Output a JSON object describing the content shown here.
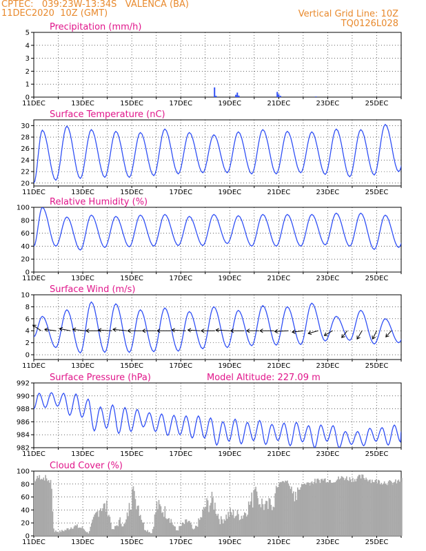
{
  "header": {
    "line1": "CPTEC:   039:23W-13:34S   VALENCA (BA)",
    "line2": "11DEC2020  10Z (GMT)",
    "grid_note": "Vertical Grid Line: 10Z",
    "code": "TQ0126L028"
  },
  "colors": {
    "line": "#2f4ff5",
    "title": "#e0158a",
    "header": "#e8892c",
    "cloud": "#a9a9a9"
  },
  "chart_data": [
    {
      "type": "bar",
      "title": "Precipitation (mm/h)",
      "x_labels": [
        "11DEC",
        "13DEC",
        "15DEC",
        "17DEC",
        "19DEC",
        "21DEC",
        "23DEC",
        "25DEC"
      ],
      "ylim": [
        0,
        5
      ],
      "yticks": [
        0,
        1,
        2,
        3,
        4,
        5
      ],
      "x_days": [
        7.38,
        7.44,
        8.25,
        8.31,
        8.37,
        9.94,
        10.0,
        10.07,
        11.52
      ],
      "values": [
        0.75,
        0.1,
        0.18,
        0.35,
        0.12,
        0.4,
        0.22,
        0.1,
        0.05
      ]
    },
    {
      "type": "line",
      "title": "Surface Temperature (nC)",
      "x_labels": [
        "11DEC",
        "13DEC",
        "15DEC",
        "17DEC",
        "19DEC",
        "21DEC",
        "23DEC",
        "25DEC"
      ],
      "ylim": [
        19.5,
        31
      ],
      "yticks": [
        20,
        22,
        24,
        26,
        28,
        30
      ],
      "cycles": 15,
      "phase": 0.25,
      "maxima": [
        29.2,
        29.9,
        29.3,
        29.0,
        28.8,
        29.4,
        28.8,
        28.4,
        28.9,
        29.3,
        29.0,
        28.9,
        29.4,
        29.3,
        30.2,
        29.3
      ],
      "minima": [
        20.0,
        20.5,
        20.8,
        21.0,
        21.0,
        21.3,
        21.6,
        21.8,
        21.8,
        21.6,
        21.6,
        21.8,
        21.5,
        21.1,
        21.4,
        22.0
      ]
    },
    {
      "type": "line",
      "title": "Relative Humidity (%)",
      "x_labels": [
        "11DEC",
        "13DEC",
        "15DEC",
        "17DEC",
        "19DEC",
        "21DEC",
        "23DEC",
        "25DEC"
      ],
      "ylim": [
        0,
        100
      ],
      "yticks": [
        0,
        20,
        40,
        60,
        80,
        100
      ],
      "cycles": 15,
      "phase": 0.25,
      "maxima": [
        100,
        85,
        88,
        86,
        88,
        89,
        86,
        89,
        87,
        89,
        89,
        89,
        91,
        91,
        88,
        87
      ],
      "minima": [
        40,
        40,
        34,
        38,
        39,
        40,
        41,
        41,
        44,
        40,
        40,
        40,
        42,
        40,
        35,
        38
      ]
    },
    {
      "type": "line",
      "title": "Surface Wind (m/s)",
      "x_labels": [
        "11DEC",
        "13DEC",
        "15DEC",
        "17DEC",
        "19DEC",
        "21DEC",
        "23DEC",
        "25DEC"
      ],
      "ylim": [
        -0.8,
        10
      ],
      "yticks": [
        0,
        2,
        4,
        6,
        8,
        10
      ],
      "cycles": 15,
      "phase": 0.25,
      "maxima": [
        6.4,
        7.5,
        8.8,
        8.5,
        7.5,
        7.8,
        7.2,
        8.0,
        7.4,
        8.2,
        8.0,
        8.6,
        6.4,
        7.4,
        6.0,
        6.0
      ],
      "minima": [
        3.0,
        1.2,
        0.3,
        0.4,
        0.4,
        0.5,
        0.6,
        1.0,
        1.2,
        1.5,
        1.6,
        1.7,
        2.3,
        2.4,
        1.8,
        2.0
      ],
      "vectors": [
        {
          "d": 0.3,
          "dx": -12,
          "dy": -8
        },
        {
          "d": 0.9,
          "dx": -16,
          "dy": -2
        },
        {
          "d": 1.5,
          "dx": -16,
          "dy": -3
        },
        {
          "d": 2.1,
          "dx": -18,
          "dy": -2
        },
        {
          "d": 2.7,
          "dx": -20,
          "dy": 0
        },
        {
          "d": 3.2,
          "dx": -20,
          "dy": -1
        },
        {
          "d": 3.8,
          "dx": -20,
          "dy": -2
        },
        {
          "d": 4.4,
          "dx": -20,
          "dy": 0
        },
        {
          "d": 5.0,
          "dx": -20,
          "dy": 0
        },
        {
          "d": 5.6,
          "dx": -20,
          "dy": 0
        },
        {
          "d": 6.2,
          "dx": -20,
          "dy": -1
        },
        {
          "d": 6.8,
          "dx": -18,
          "dy": -1
        },
        {
          "d": 7.4,
          "dx": -20,
          "dy": 0
        },
        {
          "d": 8.0,
          "dx": -20,
          "dy": -1
        },
        {
          "d": 8.6,
          "dx": -20,
          "dy": 0
        },
        {
          "d": 9.2,
          "dx": -18,
          "dy": 0
        },
        {
          "d": 9.8,
          "dx": -20,
          "dy": 0
        },
        {
          "d": 10.4,
          "dx": -20,
          "dy": 1
        },
        {
          "d": 11.0,
          "dx": -16,
          "dy": 2
        },
        {
          "d": 11.6,
          "dx": -14,
          "dy": 4
        },
        {
          "d": 12.2,
          "dx": -12,
          "dy": 7
        },
        {
          "d": 12.8,
          "dx": -8,
          "dy": 10
        },
        {
          "d": 13.4,
          "dx": -7,
          "dy": 12
        },
        {
          "d": 14.0,
          "dx": -6,
          "dy": 12
        },
        {
          "d": 14.6,
          "dx": -8,
          "dy": 9
        }
      ]
    },
    {
      "type": "line",
      "title": "Surface Pressure (hPa)",
      "altitude_label": "Model Altitude: 227.09  m",
      "x_labels": [
        "11DEC",
        "13DEC",
        "15DEC",
        "17DEC",
        "19DEC",
        "21DEC",
        "23DEC",
        "25DEC"
      ],
      "ylim": [
        982,
        992
      ],
      "yticks": [
        982,
        984,
        986,
        988,
        990,
        992
      ],
      "semicycles": 30,
      "phase": 0.1,
      "maxima": [
        990.4,
        990.5,
        990.4,
        990.3,
        989.5,
        988.3,
        988.6,
        988.2,
        987.9,
        987.4,
        987.2,
        987.0,
        986.9,
        986.9,
        986.6,
        986.0,
        986.4,
        985.9,
        986.2,
        985.6,
        985.8,
        985.9,
        985.4,
        985.5,
        985.4,
        984.5,
        984.5,
        985.0,
        985.1,
        985.5,
        985.4
      ],
      "minima": [
        988.2,
        988.4,
        987.0,
        986.7,
        984.6,
        985.0,
        984.2,
        984.5,
        985.2,
        984.5,
        983.9,
        984.0,
        983.5,
        983.5,
        982.4,
        983.0,
        982.6,
        983.1,
        982.5,
        983.1,
        982.3,
        982.9,
        982.0,
        983.0,
        982.0,
        982.5,
        982.3,
        983.0,
        982.4,
        982.9
      ]
    },
    {
      "type": "bar",
      "title": "Cloud Cover (%)",
      "x_labels": [
        "11DEC",
        "13DEC",
        "15DEC",
        "17DEC",
        "19DEC",
        "21DEC",
        "23DEC",
        "25DEC"
      ],
      "ylim": [
        0,
        100
      ],
      "yticks": [
        0,
        20,
        40,
        60,
        80,
        100
      ],
      "envelope_days": [
        0,
        0.2,
        0.5,
        0.7,
        0.8,
        1.0,
        1.3,
        1.6,
        2.0,
        2.2,
        2.5,
        2.7,
        3.0,
        3.2,
        3.5,
        3.7,
        4.0,
        4.2,
        4.5,
        4.8,
        5.0,
        5.3,
        5.5,
        5.8,
        6.0,
        6.3,
        6.5,
        6.8,
        7.0,
        7.3,
        7.6,
        8.0,
        8.5,
        9.0,
        9.5,
        10.0,
        10.3,
        10.6,
        11.0,
        11.4,
        11.8,
        12.2,
        12.6,
        13.0,
        13.4,
        13.8,
        14.2,
        14.6,
        15.0
      ],
      "envelope_values": [
        90,
        96,
        94,
        85,
        10,
        8,
        12,
        20,
        15,
        5,
        40,
        60,
        55,
        10,
        30,
        20,
        80,
        70,
        15,
        5,
        60,
        50,
        40,
        10,
        20,
        30,
        10,
        35,
        60,
        70,
        30,
        45,
        40,
        80,
        55,
        85,
        90,
        70,
        85,
        88,
        92,
        90,
        95,
        92,
        96,
        90,
        88,
        86,
        90
      ]
    }
  ]
}
